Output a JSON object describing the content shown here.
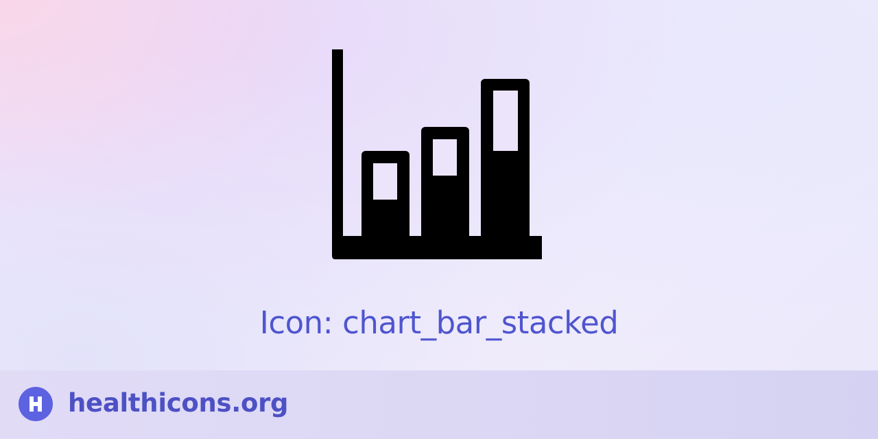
{
  "icon": {
    "name": "chart-bar-stacked-icon",
    "color": "#000000"
  },
  "caption": {
    "text": "Icon: chart_bar_stacked",
    "color": "#4f55cf"
  },
  "footer": {
    "logo_icon": "healthicons-logo-icon",
    "logo_color": "#5c62e0",
    "site_name": "healthicons.org",
    "site_name_color": "#4d51c4"
  }
}
